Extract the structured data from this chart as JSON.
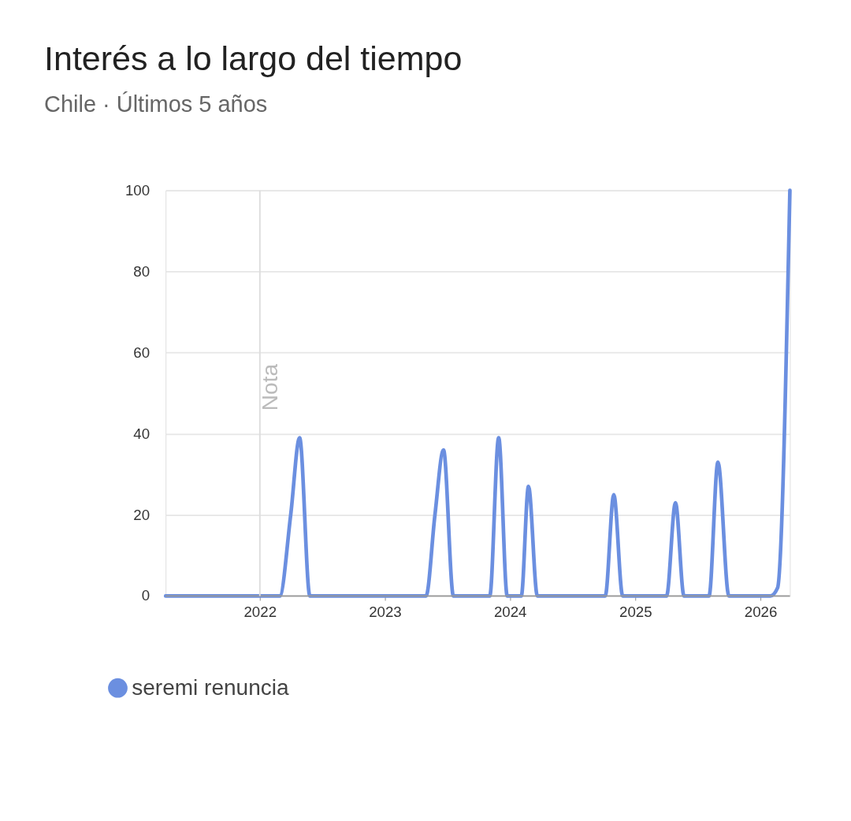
{
  "chart_data": {
    "type": "line",
    "title": "Interés a lo largo del tiempo",
    "subtitle": "Chile · Últimos 5 años",
    "x": [
      "2021-04-01",
      "2022-02-28",
      "2022-04-01",
      "2022-04-27",
      "2022-05-27",
      "2023-05-01",
      "2023-05-27",
      "2023-06-21",
      "2023-07-20",
      "2023-11-03",
      "2023-11-29",
      "2023-12-24",
      "2024-02-03",
      "2024-02-24",
      "2024-03-21",
      "2024-10-05",
      "2024-10-30",
      "2024-11-25",
      "2025-04-02",
      "2025-04-28",
      "2025-05-23",
      "2025-08-04",
      "2025-08-30",
      "2025-10-01",
      "2026-01-30",
      "2026-02-20",
      "2026-03-28"
    ],
    "series": [
      {
        "name": "seremi renuncia",
        "color": "#6b8fe0",
        "values": [
          0,
          0,
          20,
          39,
          0,
          0,
          20,
          36,
          0,
          0,
          39,
          0,
          0,
          27,
          0,
          0,
          25,
          0,
          0,
          23,
          0,
          0,
          33,
          0,
          0,
          2,
          100
        ]
      }
    ],
    "xlim": [
      "2021-04-01",
      "2026-03-28"
    ],
    "xticks": [
      "2022",
      "2023",
      "2024",
      "2025",
      "2026"
    ],
    "ylim": [
      0,
      100
    ],
    "yticks": [
      0,
      20,
      40,
      60,
      80,
      100
    ],
    "ref_lines": [
      {
        "axis": "x",
        "value": "2022-01-01",
        "label": "Nota",
        "color": "#dddddd"
      }
    ],
    "grid": "y",
    "legend": "bottom left",
    "marker": "none",
    "line_style": "solid"
  }
}
